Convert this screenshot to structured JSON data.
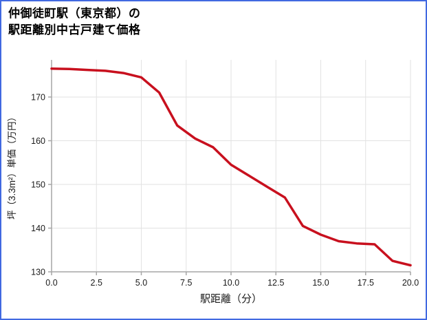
{
  "chart_data": {
    "type": "line",
    "title_lines": [
      "仲御徒町駅（東京都）の",
      "駅距離別中古戸建て価格"
    ],
    "xlabel": "駅距離（分）",
    "ylabel": "坪（3.3m²）単価（万円）",
    "x": [
      0,
      1,
      2,
      3,
      4,
      5,
      6,
      7,
      8,
      9,
      10,
      11,
      12,
      13,
      14,
      15,
      16,
      17,
      18,
      19,
      20
    ],
    "values": [
      176.5,
      176.4,
      176.2,
      176.0,
      175.5,
      174.5,
      171.0,
      163.5,
      160.5,
      158.5,
      154.5,
      152.0,
      149.5,
      147.0,
      140.5,
      138.5,
      137.0,
      136.5,
      136.3,
      132.5,
      131.5
    ],
    "xticks": [
      0,
      2.5,
      5,
      7.5,
      10,
      12.5,
      15,
      17.5,
      20
    ],
    "xtick_labels": [
      "0.0",
      "2.5",
      "5.0",
      "7.5",
      "10.0",
      "12.5",
      "15.0",
      "17.5",
      "20.0"
    ],
    "yticks": [
      130,
      140,
      150,
      160,
      170
    ],
    "xlim": [
      0,
      20
    ],
    "ylim": [
      130,
      178.5
    ],
    "grid": true,
    "legend": "none",
    "line_color": "#c8101e",
    "colors": {
      "border": "#4169e1",
      "grid": "#e2e2e2",
      "axis": "#a6a6a6",
      "text": "#1a1a1a"
    }
  }
}
